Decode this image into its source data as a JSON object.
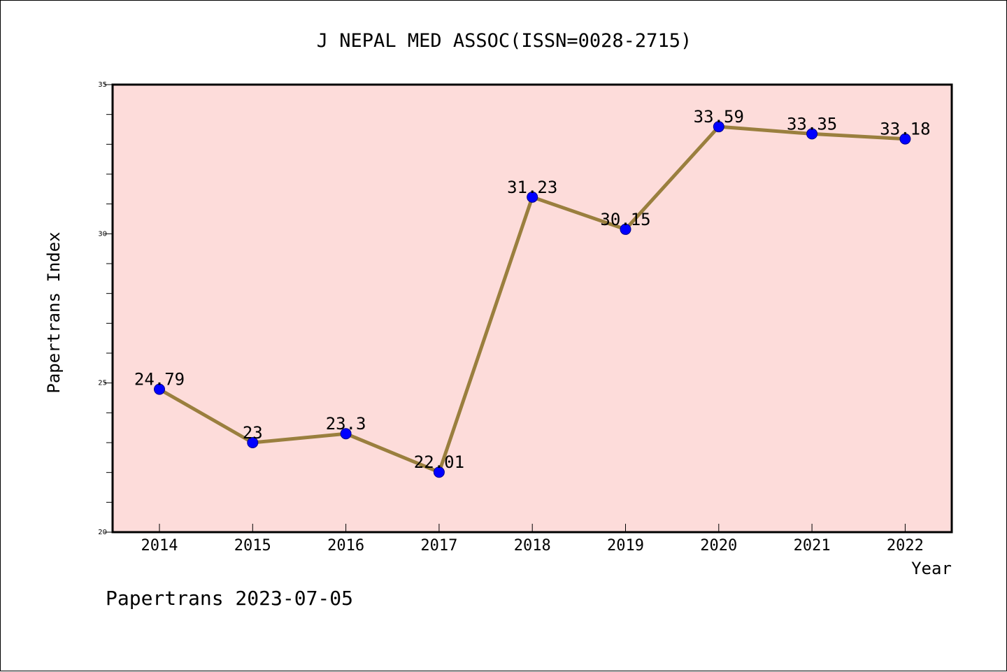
{
  "chart_data": {
    "type": "line",
    "title": "J NEPAL MED ASSOC(ISSN=0028-2715)",
    "xlabel": "Year",
    "ylabel": "Papertrans Index",
    "categories": [
      "2014",
      "2015",
      "2016",
      "2017",
      "2018",
      "2019",
      "2020",
      "2021",
      "2022"
    ],
    "series": [
      {
        "values": [
          24.79,
          23,
          23.3,
          22.01,
          31.23,
          30.15,
          33.59,
          33.35,
          33.18
        ]
      }
    ],
    "data_labels": [
      "24.79",
      "23",
      "23.3",
      "22.01",
      "31.23",
      "30.15",
      "33.59",
      "33.35",
      "33.18"
    ],
    "ylim": [
      20,
      35
    ],
    "y_ticks": [
      "20",
      "25",
      "30",
      "35"
    ],
    "grid": false,
    "legend": "none",
    "colors": {
      "plot_background": "#fddcda",
      "line": "#9a7f3e",
      "marker_fill": "#0000ff",
      "marker_edge": "#00008b",
      "axis": "#000000"
    }
  },
  "footer": {
    "text": "Papertrans 2023-07-05"
  }
}
